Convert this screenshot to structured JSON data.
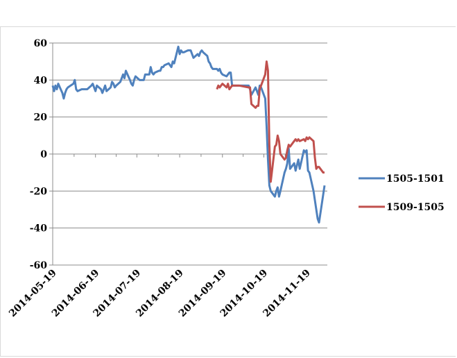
{
  "chart_data": {
    "type": "line",
    "title": "",
    "xlabel": "",
    "ylabel": "",
    "ylim": [
      -60,
      60
    ],
    "yticks": [
      60,
      40,
      20,
      0,
      -20,
      -40,
      -60
    ],
    "x_ticks": [
      "2014-05-19",
      "2014-06-19",
      "2014-07-19",
      "2014-08-19",
      "2014-09-19",
      "2014-10-19",
      "2014-11-19"
    ],
    "x_range": [
      "2014-05-19",
      "2014-12-04"
    ],
    "grid": "horizontal",
    "legend_position": "right",
    "series": [
      {
        "name": "1505-1501",
        "color": "#4f81bd",
        "points": [
          [
            "2014-05-19",
            37
          ],
          [
            "2014-05-20",
            34
          ],
          [
            "2014-05-21",
            37
          ],
          [
            "2014-05-22",
            35
          ],
          [
            "2014-05-23",
            38
          ],
          [
            "2014-05-26",
            33
          ],
          [
            "2014-05-27",
            30
          ],
          [
            "2014-05-28",
            33
          ],
          [
            "2014-05-29",
            35
          ],
          [
            "2014-05-30",
            36
          ],
          [
            "2014-06-03",
            38
          ],
          [
            "2014-06-04",
            40
          ],
          [
            "2014-06-05",
            35
          ],
          [
            "2014-06-06",
            34
          ],
          [
            "2014-06-09",
            35
          ],
          [
            "2014-06-10",
            35
          ],
          [
            "2014-06-11",
            35
          ],
          [
            "2014-06-12",
            35
          ],
          [
            "2014-06-13",
            35
          ],
          [
            "2014-06-16",
            37
          ],
          [
            "2014-06-17",
            38
          ],
          [
            "2014-06-18",
            36
          ],
          [
            "2014-06-19",
            34
          ],
          [
            "2014-06-20",
            37
          ],
          [
            "2014-06-23",
            35
          ],
          [
            "2014-06-24",
            33
          ],
          [
            "2014-06-25",
            35
          ],
          [
            "2014-06-26",
            37
          ],
          [
            "2014-06-27",
            34
          ],
          [
            "2014-06-30",
            36
          ],
          [
            "2014-07-01",
            39
          ],
          [
            "2014-07-02",
            38
          ],
          [
            "2014-07-03",
            36
          ],
          [
            "2014-07-04",
            37
          ],
          [
            "2014-07-07",
            39
          ],
          [
            "2014-07-08",
            41
          ],
          [
            "2014-07-09",
            43
          ],
          [
            "2014-07-10",
            41
          ],
          [
            "2014-07-11",
            45
          ],
          [
            "2014-07-14",
            40
          ],
          [
            "2014-07-15",
            38
          ],
          [
            "2014-07-16",
            37
          ],
          [
            "2014-07-17",
            40
          ],
          [
            "2014-07-18",
            42
          ],
          [
            "2014-07-21",
            40
          ],
          [
            "2014-07-22",
            40
          ],
          [
            "2014-07-23",
            40
          ],
          [
            "2014-07-24",
            40
          ],
          [
            "2014-07-25",
            43
          ],
          [
            "2014-07-28",
            43
          ],
          [
            "2014-07-29",
            47
          ],
          [
            "2014-07-30",
            44
          ],
          [
            "2014-07-31",
            43
          ],
          [
            "2014-08-01",
            44
          ],
          [
            "2014-08-04",
            45
          ],
          [
            "2014-08-05",
            45
          ],
          [
            "2014-08-06",
            47
          ],
          [
            "2014-08-07",
            47
          ],
          [
            "2014-08-08",
            48
          ],
          [
            "2014-08-11",
            49
          ],
          [
            "2014-08-12",
            48
          ],
          [
            "2014-08-13",
            47
          ],
          [
            "2014-08-14",
            50
          ],
          [
            "2014-08-15",
            49
          ],
          [
            "2014-08-18",
            58
          ],
          [
            "2014-08-19",
            54
          ],
          [
            "2014-08-20",
            56
          ],
          [
            "2014-08-21",
            55
          ],
          [
            "2014-08-22",
            55
          ],
          [
            "2014-08-25",
            56
          ],
          [
            "2014-08-26",
            56
          ],
          [
            "2014-08-27",
            56
          ],
          [
            "2014-08-28",
            54
          ],
          [
            "2014-08-29",
            52
          ],
          [
            "2014-09-01",
            54
          ],
          [
            "2014-09-02",
            53
          ],
          [
            "2014-09-03",
            55
          ],
          [
            "2014-09-04",
            56
          ],
          [
            "2014-09-05",
            55
          ],
          [
            "2014-09-08",
            53
          ],
          [
            "2014-09-09",
            50
          ],
          [
            "2014-09-10",
            49
          ],
          [
            "2014-09-11",
            47
          ],
          [
            "2014-09-12",
            46
          ],
          [
            "2014-09-15",
            46
          ],
          [
            "2014-09-16",
            45
          ],
          [
            "2014-09-17",
            46
          ],
          [
            "2014-09-18",
            44
          ],
          [
            "2014-09-19",
            43
          ],
          [
            "2014-09-22",
            42
          ],
          [
            "2014-09-23",
            43
          ],
          [
            "2014-09-24",
            44
          ],
          [
            "2014-09-25",
            44
          ],
          [
            "2014-09-26",
            37
          ],
          [
            "2014-09-29",
            37
          ],
          [
            "2014-09-30",
            37
          ],
          [
            "2014-10-01",
            37
          ],
          [
            "2014-10-08",
            37
          ],
          [
            "2014-10-09",
            35
          ],
          [
            "2014-10-10",
            32
          ],
          [
            "2014-10-13",
            36
          ],
          [
            "2014-10-14",
            34
          ],
          [
            "2014-10-15",
            32
          ],
          [
            "2014-10-16",
            37
          ],
          [
            "2014-10-17",
            36
          ],
          [
            "2014-10-20",
            30
          ],
          [
            "2014-10-21",
            15
          ],
          [
            "2014-10-22",
            -3
          ],
          [
            "2014-10-23",
            -17
          ],
          [
            "2014-10-24",
            -20
          ],
          [
            "2014-10-27",
            -23
          ],
          [
            "2014-10-28",
            -20
          ],
          [
            "2014-10-29",
            -18
          ],
          [
            "2014-10-30",
            -23
          ],
          [
            "2014-10-31",
            -20
          ],
          [
            "2014-11-03",
            -10
          ],
          [
            "2014-11-04",
            -8
          ],
          [
            "2014-11-05",
            -5
          ],
          [
            "2014-11-06",
            3
          ],
          [
            "2014-11-07",
            -8
          ],
          [
            "2014-11-10",
            -5
          ],
          [
            "2014-11-11",
            -9
          ],
          [
            "2014-11-12",
            -6
          ],
          [
            "2014-11-13",
            -3
          ],
          [
            "2014-11-14",
            -8
          ],
          [
            "2014-11-17",
            2
          ],
          [
            "2014-11-18",
            1
          ],
          [
            "2014-11-19",
            2
          ],
          [
            "2014-11-20",
            -9
          ],
          [
            "2014-11-21",
            -10
          ],
          [
            "2014-11-24",
            -20
          ],
          [
            "2014-11-25",
            -25
          ],
          [
            "2014-11-26",
            -30
          ],
          [
            "2014-11-27",
            -35
          ],
          [
            "2014-11-28",
            -37
          ],
          [
            "2014-12-01",
            -22
          ],
          [
            "2014-12-02",
            -17
          ]
        ]
      },
      {
        "name": "1509-1505",
        "color": "#c0504d",
        "points": [
          [
            "2014-09-15",
            35
          ],
          [
            "2014-09-16",
            37
          ],
          [
            "2014-09-17",
            36
          ],
          [
            "2014-09-18",
            37
          ],
          [
            "2014-09-19",
            38
          ],
          [
            "2014-09-22",
            36
          ],
          [
            "2014-09-23",
            38
          ],
          [
            "2014-09-24",
            35
          ],
          [
            "2014-09-25",
            36
          ],
          [
            "2014-09-26",
            37
          ],
          [
            "2014-09-29",
            37
          ],
          [
            "2014-09-30",
            37
          ],
          [
            "2014-10-01",
            37
          ],
          [
            "2014-10-08",
            36
          ],
          [
            "2014-10-09",
            36
          ],
          [
            "2014-10-10",
            27
          ],
          [
            "2014-10-13",
            25
          ],
          [
            "2014-10-14",
            26
          ],
          [
            "2014-10-15",
            26
          ],
          [
            "2014-10-16",
            35
          ],
          [
            "2014-10-17",
            37
          ],
          [
            "2014-10-20",
            43
          ],
          [
            "2014-10-21",
            50
          ],
          [
            "2014-10-22",
            45
          ],
          [
            "2014-10-23",
            5
          ],
          [
            "2014-10-24",
            -15
          ],
          [
            "2014-10-27",
            4
          ],
          [
            "2014-10-28",
            5
          ],
          [
            "2014-10-29",
            10
          ],
          [
            "2014-10-30",
            7
          ],
          [
            "2014-10-31",
            0
          ],
          [
            "2014-11-03",
            -3
          ],
          [
            "2014-11-04",
            -2
          ],
          [
            "2014-11-05",
            2
          ],
          [
            "2014-11-06",
            5
          ],
          [
            "2014-11-07",
            4
          ],
          [
            "2014-11-10",
            7
          ],
          [
            "2014-11-11",
            8
          ],
          [
            "2014-11-12",
            7
          ],
          [
            "2014-11-13",
            8
          ],
          [
            "2014-11-14",
            7
          ],
          [
            "2014-11-17",
            8
          ],
          [
            "2014-11-18",
            7
          ],
          [
            "2014-11-19",
            9
          ],
          [
            "2014-11-20",
            8
          ],
          [
            "2014-11-21",
            9
          ],
          [
            "2014-11-24",
            7
          ],
          [
            "2014-11-25",
            -2
          ],
          [
            "2014-11-26",
            -8
          ],
          [
            "2014-11-27",
            -7
          ],
          [
            "2014-11-28",
            -7
          ],
          [
            "2014-12-01",
            -10
          ],
          [
            "2014-12-02",
            -10
          ]
        ]
      }
    ]
  }
}
